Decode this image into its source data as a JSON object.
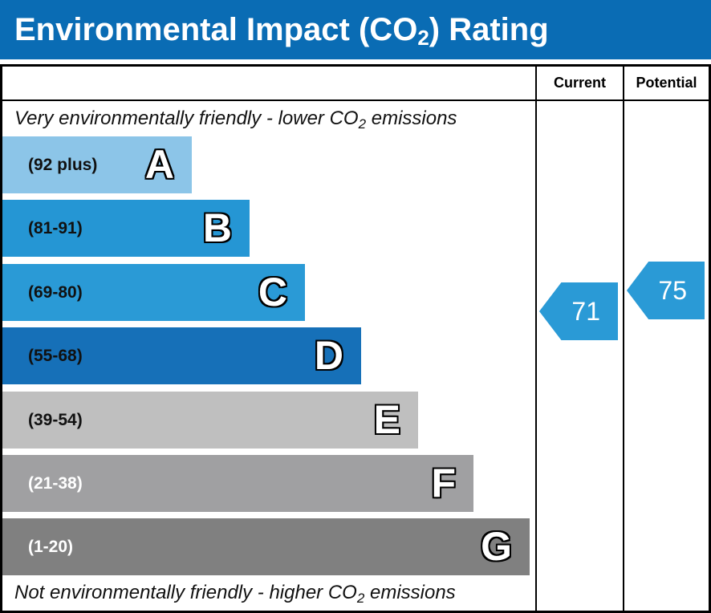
{
  "header": {
    "title_pre": "Environmental Impact (CO",
    "title_sub": "2",
    "title_post": ") Rating"
  },
  "columns": {
    "current": "Current",
    "potential": "Potential"
  },
  "captions": {
    "top_pre": "Very environmentally friendly - lower CO",
    "top_sub": "2",
    "top_post": " emissions",
    "bottom_pre": "Not environmentally friendly - higher CO",
    "bottom_sub": "2",
    "bottom_post": " emissions"
  },
  "chart_data": {
    "type": "bar",
    "bands": [
      {
        "letter": "A",
        "range": "(92 plus)",
        "color": "#8cc5e8",
        "text_color": "#111111"
      },
      {
        "letter": "B",
        "range": "(81-91)",
        "color": "#2596d4",
        "text_color": "#111111"
      },
      {
        "letter": "C",
        "range": "(69-80)",
        "color": "#2a9ad6",
        "text_color": "#111111"
      },
      {
        "letter": "D",
        "range": "(55-68)",
        "color": "#1670b8",
        "text_color": "#111111"
      },
      {
        "letter": "E",
        "range": "(39-54)",
        "color": "#bfbfbf",
        "text_color": "#111111"
      },
      {
        "letter": "F",
        "range": "(21-38)",
        "color": "#a0a0a2",
        "text_color": "#ffffff"
      },
      {
        "letter": "G",
        "range": "(1-20)",
        "color": "#808080",
        "text_color": "#ffffff"
      }
    ],
    "current": {
      "value": "71",
      "band": "C",
      "color": "#2a9ad6"
    },
    "potential": {
      "value": "75",
      "band": "C",
      "color": "#2a9ad6"
    }
  }
}
